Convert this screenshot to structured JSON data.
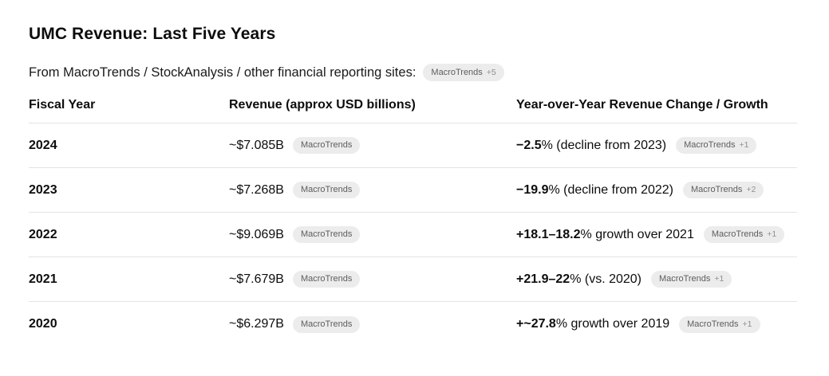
{
  "header": {
    "title": "UMC Revenue: Last Five Years",
    "subtitle": "From MacroTrends / StockAnalysis / other financial reporting sites:",
    "source_badge": {
      "label": "MacroTrends",
      "count": "+5"
    }
  },
  "table": {
    "columns": [
      "Fiscal Year",
      "Revenue (approx USD billions)",
      "Year-over-Year Revenue Change / Growth"
    ],
    "rows": [
      {
        "year": "2024",
        "revenue": "~$7.085B",
        "revenue_badge": {
          "label": "MacroTrends"
        },
        "change_bold": "−2.5",
        "change_rest": "% (decline from 2023)",
        "change_badge": {
          "label": "MacroTrends",
          "count": "+1"
        }
      },
      {
        "year": "2023",
        "revenue": "~$7.268B",
        "revenue_badge": {
          "label": "MacroTrends"
        },
        "change_bold": "−19.9",
        "change_rest": "% (decline from 2022)",
        "change_badge": {
          "label": "MacroTrends",
          "count": "+2"
        }
      },
      {
        "year": "2022",
        "revenue": "~$9.069B",
        "revenue_badge": {
          "label": "MacroTrends"
        },
        "change_bold": "+18.1–18.2",
        "change_rest": "% growth over 2021",
        "change_badge": {
          "label": "MacroTrends",
          "count": "+1"
        }
      },
      {
        "year": "2021",
        "revenue": "~$7.679B",
        "revenue_badge": {
          "label": "MacroTrends"
        },
        "change_bold": "+21.9–22",
        "change_rest": "% (vs. 2020)",
        "change_badge": {
          "label": "MacroTrends",
          "count": "+1"
        }
      },
      {
        "year": "2020",
        "revenue": "~$6.297B",
        "revenue_badge": {
          "label": "MacroTrends"
        },
        "change_bold": "+~27.8",
        "change_rest": "% growth over 2019",
        "change_badge": {
          "label": "MacroTrends",
          "count": "+1"
        }
      }
    ]
  },
  "colors": {
    "text": "#0d0d0d",
    "badge_bg": "#ececec",
    "badge_text": "#5d5d5d",
    "badge_count_text": "#8f8f8f",
    "divider": "#e3e3e3"
  }
}
